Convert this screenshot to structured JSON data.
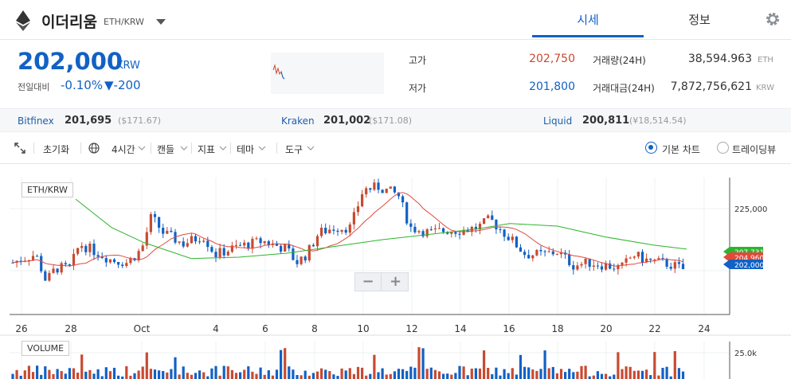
{
  "header": {
    "coin_name": "이더리움",
    "pair": "ETH/KRW",
    "tabs": [
      {
        "label": "시세"
      },
      {
        "label": "정보"
      }
    ]
  },
  "price": {
    "current": "202,000",
    "unit": "KRW",
    "change_label": "전일대비",
    "change_pct": "-0.10%",
    "change_amt": "▼-200"
  },
  "stats": {
    "high_label": "고가",
    "high": "202,750",
    "low_label": "저가",
    "low": "201,800",
    "vol_label": "거래량(24H)",
    "vol": "38,594.963",
    "vol_unit": "ETH",
    "amt_label": "거래대금(24H)",
    "amt": "7,872,756,621",
    "amt_unit": "KRW"
  },
  "exchanges": [
    {
      "name": "Bitfinex",
      "value": "201,695",
      "usd": "($171.67)"
    },
    {
      "name": "Kraken",
      "value": "201,002",
      "usd": "($171.08)"
    },
    {
      "name": "Liquid",
      "value": "200,811",
      "usd": "(¥18,514.54)"
    }
  ],
  "toolbar": {
    "reset": "초기화",
    "interval": "4시간",
    "candle": "캔들",
    "indicator": "지표",
    "theme": "테마",
    "tools": "도구",
    "basic_chart": "기본 차트",
    "tradingview": "트레이딩뷰"
  },
  "colors": {
    "up": "#c84a31",
    "down": "#1261c4",
    "ma_short": "#e0493c",
    "ma_long": "#2cb52c"
  },
  "chart_data": {
    "type": "candlestick",
    "series_label": "ETH/KRW",
    "volume_label": "VOLUME",
    "x_tick_labels": [
      "26",
      "28",
      "Oct",
      "4",
      "6",
      "8",
      "10",
      "12",
      "14",
      "16",
      "18",
      "20",
      "22",
      "24"
    ],
    "y_tick_labels": [
      "225,000"
    ],
    "volume_tick_label": "25.0k",
    "price_tags": [
      "207,731",
      "204,960",
      "202,000"
    ]
  }
}
